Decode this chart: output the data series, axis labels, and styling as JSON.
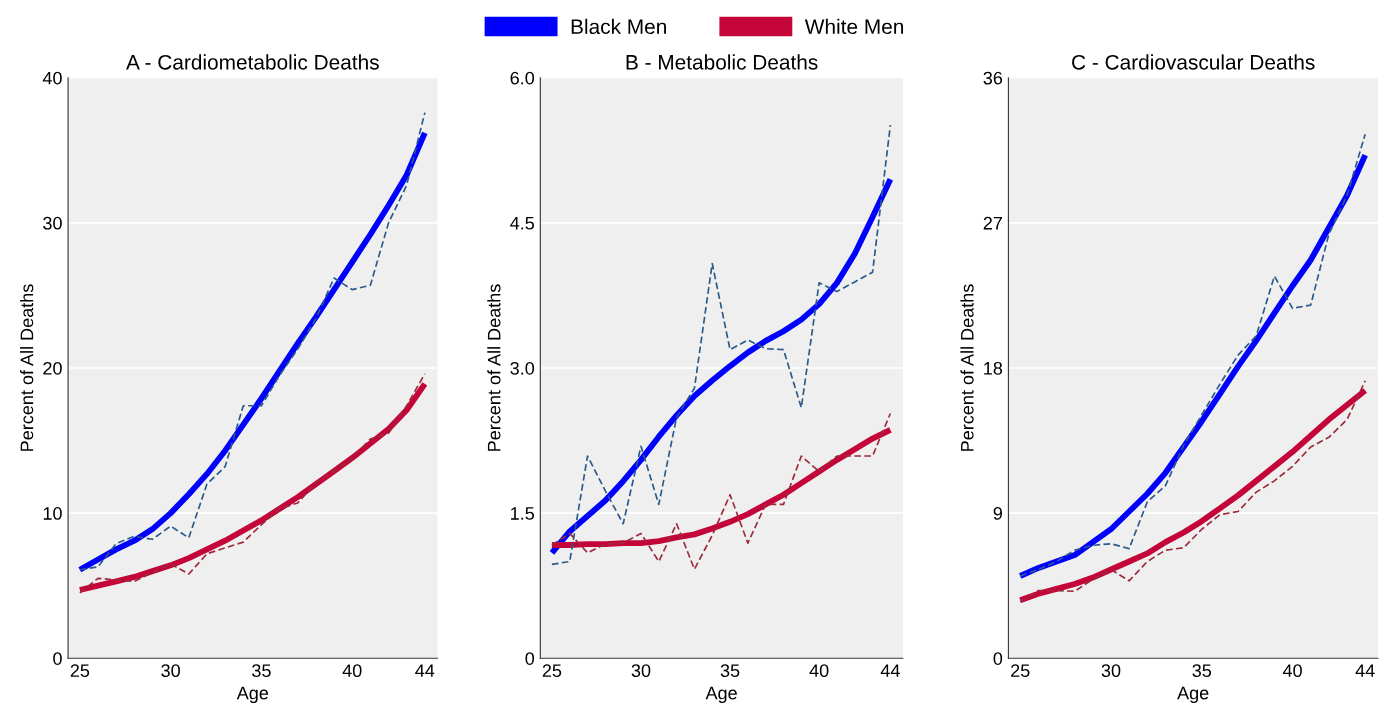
{
  "chart_data": [
    {
      "type": "line",
      "title": "A - Cardiometabolic Deaths",
      "xlabel": "Age",
      "ylabel": "Percent of All Deaths",
      "x": [
        25,
        26,
        27,
        28,
        29,
        30,
        31,
        32,
        33,
        34,
        35,
        36,
        37,
        38,
        39,
        40,
        41,
        42,
        43,
        44
      ],
      "xlim": [
        24.35,
        44.7
      ],
      "xticks": [
        25,
        30,
        35,
        40,
        44
      ],
      "ylim": [
        0,
        40
      ],
      "yticks": [
        0,
        10,
        20,
        30,
        40
      ],
      "grid": "y",
      "legend": "top",
      "series": [
        {
          "color": "#2a5a8a",
          "line_style": "dashed",
          "values": [
            6.1,
            6.3,
            7.9,
            8.4,
            8.2,
            9.1,
            8.3,
            12.0,
            13.2,
            17.4,
            17.4,
            19.5,
            21.3,
            23.4,
            26.2,
            25.4,
            25.7,
            30.0,
            32.6,
            37.6
          ]
        },
        {
          "color": "#9b2a3a",
          "line_style": "dashed",
          "values": [
            4.5,
            5.5,
            5.4,
            5.3,
            5.9,
            6.5,
            5.8,
            7.2,
            7.6,
            8.0,
            9.2,
            10.3,
            10.7,
            12.1,
            12.9,
            13.8,
            15.1,
            15.5,
            17.4,
            19.6
          ]
        },
        {
          "name": "Black Men",
          "color": "#0000ff",
          "line_style": "solid",
          "values": [
            6.1,
            6.8,
            7.5,
            8.1,
            8.9,
            10.0,
            11.3,
            12.7,
            14.3,
            16.1,
            17.9,
            19.8,
            21.7,
            23.5,
            25.4,
            27.3,
            29.2,
            31.2,
            33.3,
            36.2
          ]
        },
        {
          "name": "White Men",
          "color": "#c4053a",
          "line_style": "solid",
          "values": [
            4.7,
            5.0,
            5.3,
            5.6,
            6.0,
            6.4,
            6.9,
            7.5,
            8.1,
            8.8,
            9.5,
            10.3,
            11.1,
            12.0,
            12.9,
            13.8,
            14.8,
            15.8,
            17.1,
            18.9
          ]
        }
      ]
    },
    {
      "type": "line",
      "title": "B - Metabolic Deaths",
      "xlabel": "Age",
      "ylabel": "Percent of All Deaths",
      "x": [
        25,
        26,
        27,
        28,
        29,
        30,
        31,
        32,
        33,
        34,
        35,
        36,
        37,
        38,
        39,
        40,
        41,
        42,
        43,
        44
      ],
      "xlim": [
        24.35,
        44.7
      ],
      "xticks": [
        25,
        30,
        35,
        40,
        44
      ],
      "ylim": [
        0,
        6
      ],
      "yticks": [
        0,
        1.5,
        {
          "value": 3,
          "label": "3.0"
        },
        4.5,
        {
          "value": 6,
          "label": "6.0"
        }
      ],
      "grid": "y",
      "series": [
        {
          "color": "#2a5a8a",
          "line_style": "dashed",
          "values": [
            0.97,
            1.0,
            2.09,
            1.73,
            1.39,
            2.19,
            1.59,
            2.49,
            2.79,
            4.08,
            3.19,
            3.29,
            3.2,
            3.19,
            2.59,
            3.88,
            3.79,
            3.89,
            3.99,
            5.51
          ]
        },
        {
          "color": "#9b2a3a",
          "line_style": "dashed",
          "values": [
            1.17,
            1.29,
            1.09,
            1.18,
            1.19,
            1.29,
            1.0,
            1.39,
            0.92,
            1.27,
            1.69,
            1.19,
            1.59,
            1.59,
            2.09,
            1.93,
            2.09,
            2.09,
            2.09,
            2.53
          ]
        },
        {
          "color": "#0000ff",
          "line_style": "solid",
          "values": [
            1.09,
            1.31,
            1.47,
            1.63,
            1.83,
            2.05,
            2.29,
            2.51,
            2.71,
            2.87,
            3.02,
            3.16,
            3.28,
            3.38,
            3.5,
            3.66,
            3.88,
            4.18,
            4.56,
            4.95
          ]
        },
        {
          "color": "#c4053a",
          "line_style": "solid",
          "values": [
            1.17,
            1.17,
            1.18,
            1.18,
            1.19,
            1.19,
            1.21,
            1.25,
            1.28,
            1.34,
            1.41,
            1.49,
            1.59,
            1.69,
            1.81,
            1.93,
            2.05,
            2.16,
            2.27,
            2.36
          ]
        }
      ]
    },
    {
      "type": "line",
      "title": "C - Cardiovascular Deaths",
      "xlabel": "Age",
      "ylabel": "Percent of All Deaths",
      "x": [
        25,
        26,
        27,
        28,
        29,
        30,
        31,
        32,
        33,
        34,
        35,
        36,
        37,
        38,
        39,
        40,
        41,
        42,
        43,
        44
      ],
      "xlim": [
        24.35,
        44.7
      ],
      "xticks": [
        25,
        30,
        35,
        40,
        44
      ],
      "ylim": [
        0,
        36
      ],
      "yticks": [
        0,
        9,
        18,
        27,
        36
      ],
      "grid": "y",
      "series": [
        {
          "color": "#2a5a8a",
          "line_style": "dashed",
          "values": [
            5.1,
            5.5,
            6.0,
            6.7,
            7.0,
            7.1,
            6.8,
            9.7,
            10.7,
            13.2,
            15.1,
            17.0,
            18.8,
            20.0,
            23.7,
            21.7,
            21.9,
            26.3,
            28.7,
            32.5
          ]
        },
        {
          "color": "#9b2a3a",
          "line_style": "dashed",
          "values": [
            3.5,
            4.2,
            4.2,
            4.15,
            4.9,
            5.5,
            4.8,
            6.0,
            6.7,
            6.85,
            8.0,
            8.9,
            9.1,
            10.3,
            11.0,
            11.9,
            13.1,
            13.7,
            14.8,
            17.2
          ]
        },
        {
          "color": "#0000ff",
          "line_style": "solid",
          "values": [
            5.1,
            5.6,
            6.0,
            6.4,
            7.2,
            8.0,
            9.1,
            10.2,
            11.5,
            13.1,
            14.7,
            16.4,
            18.1,
            19.7,
            21.4,
            23.1,
            24.7,
            26.7,
            28.7,
            31.2
          ]
        },
        {
          "color": "#c4053a",
          "line_style": "solid",
          "values": [
            3.6,
            4.0,
            4.3,
            4.6,
            5.0,
            5.5,
            6.0,
            6.5,
            7.2,
            7.8,
            8.5,
            9.3,
            10.1,
            11.0,
            11.9,
            12.8,
            13.8,
            14.8,
            15.7,
            16.6
          ]
        }
      ]
    }
  ]
}
